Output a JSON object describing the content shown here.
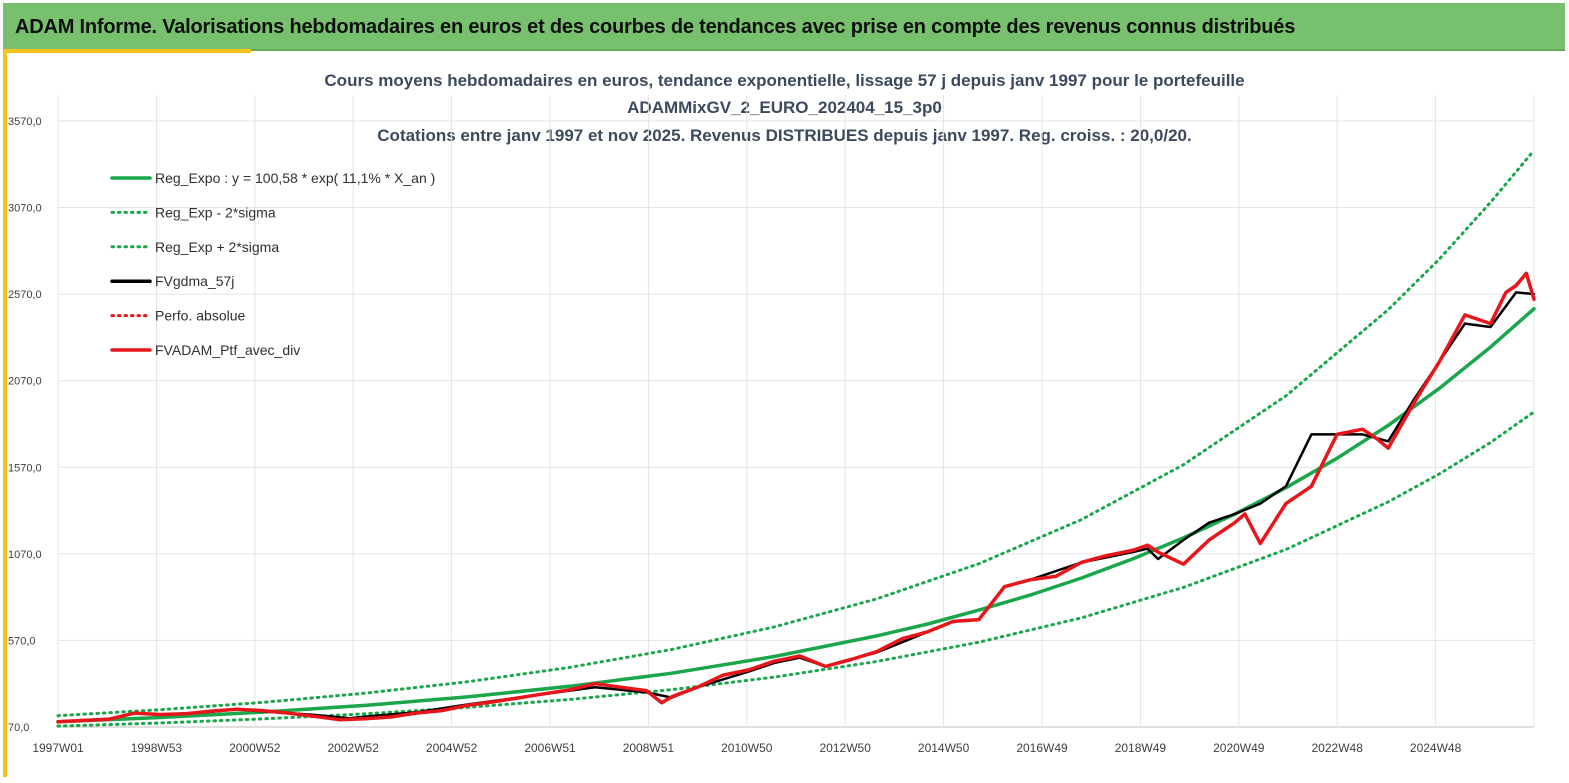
{
  "header": {
    "title": "ADAM Informe. Valorisations hebdomadaires en euros et des courbes de tendances avec prise en compte des revenus connus distribués"
  },
  "colors": {
    "header_bg": "#77c16e",
    "accent": "#f4c21b",
    "trend": "#1aa64a",
    "smooth": "#000000",
    "portfolio": "#e8161b"
  },
  "chart_data": {
    "type": "line",
    "title_lines": [
      "Cours moyens hebdomadaires  en euros, tendance exponentielle, lissage 57 j depuis janv 1997 pour le portefeuille",
      "ADAMMixGV_2_EURO_202404_15_3p0",
      "Cotations  entre janv 1997 et nov 2025. Revenus DISTRIBUES depuis janv 1997. Reg. croiss. : 20,0/20."
    ],
    "y_ticks": [
      "70,0",
      "570,0",
      "1070,0",
      "1570,0",
      "2070,0",
      "2570,0",
      "3070,0",
      "3570,0"
    ],
    "ylim": [
      70,
      3720
    ],
    "x_ticks": [
      "1997W01",
      "1998W53",
      "2000W52",
      "2002W52",
      "2004W52",
      "2006W51",
      "2008W51",
      "2010W50",
      "2012W50",
      "2014W50",
      "2016W49",
      "2018W49",
      "2020W49",
      "2022W48",
      "2024W48"
    ],
    "x_range": [
      1997.0,
      2025.85
    ],
    "grid": true,
    "legend_position": "top-left",
    "legend": [
      {
        "label": "Reg_Expo : y = 100,58 * exp( 11,1% *  X_an )",
        "style": "solid",
        "color": "#1aa64a"
      },
      {
        "label": "Reg_Exp - 2*sigma",
        "style": "dotted",
        "color": "#1aa64a"
      },
      {
        "label": "Reg_Exp + 2*sigma",
        "style": "dotted",
        "color": "#1aa64a"
      },
      {
        "label": "FVgdma_57j",
        "style": "solid",
        "color": "#000000"
      },
      {
        "label": "Perfo. absolue",
        "style": "dotted",
        "color": "#e8161b"
      },
      {
        "label": "FVADAM_Ptf_avec_div",
        "style": "solid",
        "color": "#e8161b"
      }
    ],
    "series": [
      {
        "name": "Reg_Expo : y = 100,58 * exp( 11,1% *  X_an )",
        "style": "solid",
        "color": "#1aa64a",
        "x": [
          1997,
          1999,
          2001,
          2003,
          2005,
          2007,
          2009,
          2011,
          2013,
          2014,
          2015,
          2016,
          2017,
          2018,
          2019,
          2020,
          2021,
          2022,
          2023,
          2024,
          2025,
          2025.85
        ],
        "y": [
          100,
          125,
          156,
          195,
          244,
          305,
          381,
          477,
          596,
          665,
          745,
          832,
          930,
          1040,
          1162,
          1299,
          1452,
          1622,
          1812,
          2026,
          2264,
          2485
        ]
      },
      {
        "name": "Reg_Exp - 2*sigma",
        "style": "dotted",
        "color": "#1aa64a",
        "x": [
          1997,
          1999,
          2001,
          2003,
          2005,
          2007,
          2009,
          2011,
          2013,
          2015,
          2017,
          2019,
          2021,
          2023,
          2024,
          2025,
          2025.85
        ],
        "y": [
          75,
          93,
          117,
          146,
          183,
          229,
          286,
          358,
          448,
          560,
          700,
          876,
          1095,
          1370,
          1532,
          1713,
          1890
        ]
      },
      {
        "name": "Reg_Exp + 2*sigma",
        "style": "dotted",
        "color": "#1aa64a",
        "x": [
          1997,
          1999,
          2001,
          2003,
          2005,
          2007,
          2009,
          2011,
          2013,
          2015,
          2017,
          2019,
          2021,
          2023,
          2024,
          2025,
          2025.85
        ],
        "y": [
          135,
          170,
          212,
          265,
          331,
          414,
          518,
          648,
          810,
          1013,
          1267,
          1585,
          1982,
          2480,
          2773,
          3100,
          3400
        ]
      },
      {
        "name": "FVgdma_57j",
        "style": "solid",
        "color": "#000000",
        "x": [
          1997,
          1998,
          1998.5,
          1999,
          2000,
          2000.5,
          2001,
          2002,
          2002.7,
          2003,
          2004,
          2005,
          2006,
          2007,
          2007.5,
          2008.5,
          2009,
          2009.5,
          2010.5,
          2011,
          2011.5,
          2012,
          2013,
          2013.5,
          2014,
          2014.5,
          2015,
          2015.5,
          2016,
          2017,
          2018,
          2018.3,
          2018.5,
          2019,
          2019.5,
          2020,
          2020.5,
          2021,
          2021.5,
          2022,
          2022.5,
          2023,
          2023.5,
          2024,
          2024.5,
          2025,
          2025.5,
          2025.85
        ],
        "y": [
          100,
          118,
          150,
          140,
          158,
          172,
          160,
          140,
          120,
          130,
          155,
          200,
          240,
          280,
          300,
          270,
          240,
          300,
          390,
          440,
          470,
          420,
          500,
          560,
          620,
          680,
          690,
          880,
          920,
          1020,
          1080,
          1100,
          1040,
          1150,
          1250,
          1300,
          1360,
          1460,
          1760,
          1760,
          1760,
          1720,
          1960,
          2180,
          2400,
          2380,
          2580,
          2570
        ]
      },
      {
        "name": "FVADAM_Ptf_avec_div",
        "style": "solid",
        "color": "#e8161b",
        "x": [
          1997,
          1997.5,
          1998,
          1998.5,
          1999,
          1999.5,
          2000,
          2000.5,
          2001,
          2001.5,
          2002,
          2002.5,
          2003,
          2003.5,
          2004,
          2004.5,
          2005,
          2005.5,
          2006,
          2006.5,
          2007,
          2007.5,
          2008,
          2008.5,
          2008.8,
          2009,
          2009.5,
          2010,
          2010.5,
          2011,
          2011.5,
          2012,
          2012.5,
          2013,
          2013.5,
          2014,
          2014.5,
          2015,
          2015.5,
          2016,
          2016.5,
          2017,
          2017.5,
          2018,
          2018.3,
          2018.5,
          2019,
          2019.5,
          2020,
          2020.2,
          2020.5,
          2021,
          2021.5,
          2022,
          2022.5,
          2022.8,
          2023,
          2023.5,
          2024,
          2024.5,
          2025,
          2025.3,
          2025.5,
          2025.7,
          2025.85
        ],
        "y": [
          100,
          108,
          115,
          150,
          142,
          146,
          162,
          172,
          165,
          150,
          132,
          112,
          118,
          128,
          150,
          165,
          195,
          215,
          238,
          262,
          285,
          320,
          300,
          280,
          210,
          245,
          300,
          370,
          400,
          450,
          480,
          420,
          460,
          505,
          580,
          620,
          680,
          690,
          880,
          920,
          940,
          1020,
          1060,
          1090,
          1120,
          1080,
          1010,
          1150,
          1250,
          1300,
          1130,
          1360,
          1460,
          1760,
          1790,
          1730,
          1680,
          1940,
          2180,
          2450,
          2400,
          2580,
          2620,
          2690,
          2540
        ]
      }
    ]
  }
}
